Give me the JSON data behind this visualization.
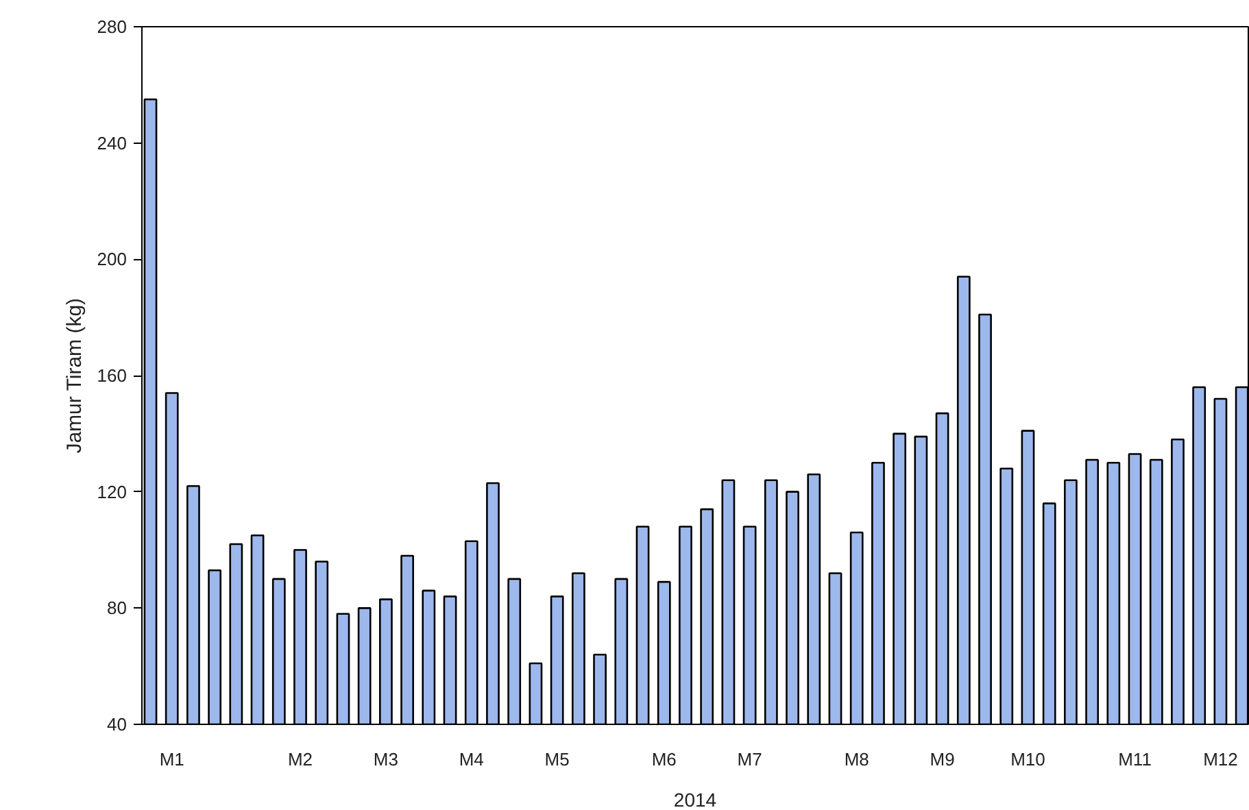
{
  "chart_data": {
    "type": "bar",
    "xlabel": "2014",
    "ylabel": "Jamur Tiram (kg)",
    "categories": [
      null,
      "M1",
      null,
      null,
      null,
      null,
      null,
      "M2",
      null,
      null,
      null,
      "M3",
      null,
      null,
      null,
      "M4",
      null,
      null,
      null,
      "M5",
      null,
      null,
      null,
      null,
      "M6",
      null,
      null,
      null,
      "M7",
      null,
      null,
      null,
      null,
      "M8",
      null,
      null,
      null,
      "M9",
      null,
      null,
      null,
      "M10",
      null,
      null,
      null,
      null,
      "M11",
      null,
      null,
      null,
      "M12",
      null
    ],
    "values": [
      255,
      154,
      122,
      93,
      102,
      105,
      90,
      100,
      96,
      78,
      80,
      83,
      98,
      86,
      84,
      103,
      123,
      90,
      61,
      84,
      92,
      64,
      90,
      108,
      89,
      108,
      114,
      124,
      108,
      124,
      120,
      126,
      92,
      106,
      130,
      140,
      139,
      147,
      194,
      181,
      128,
      141,
      116,
      124,
      131,
      130,
      133,
      131,
      138,
      156,
      152,
      156
    ],
    "color": "#9db8ec",
    "ylim": [
      40,
      280
    ],
    "yticks": [
      40,
      80,
      120,
      160,
      200,
      240,
      280
    ],
    "grid": false
  }
}
